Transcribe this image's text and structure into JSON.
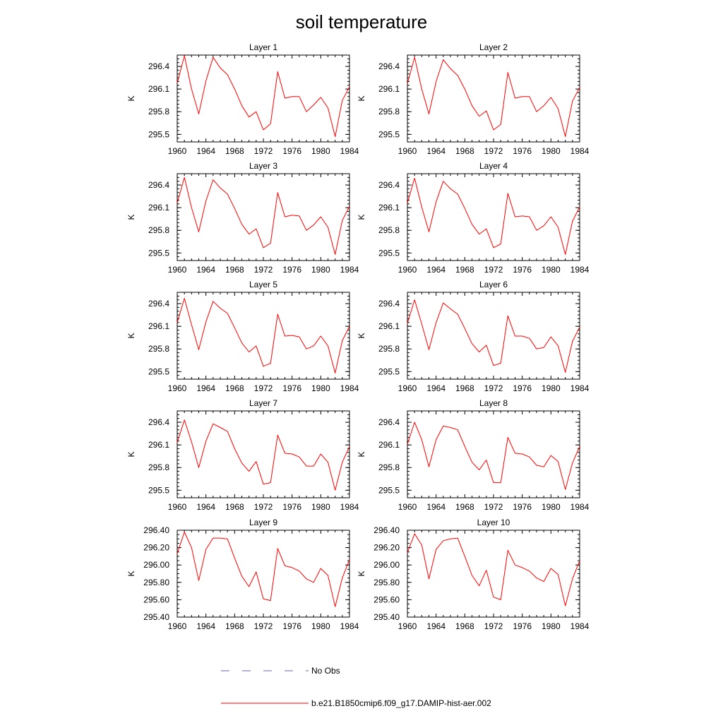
{
  "title": "soil temperature",
  "colors": {
    "model": "#ff0000",
    "obs": "#6666cc",
    "axis": "#000000"
  },
  "legend": [
    {
      "label": "No Obs",
      "style": "dashed",
      "color": "#6666cc"
    },
    {
      "label": "b.e21.B1850cmip6.f09_g17.DAMIP-hist-aer.002",
      "style": "solid",
      "color": "#ff0000"
    }
  ],
  "chart_data": [
    {
      "type": "line",
      "title": "Layer 1",
      "ylabel": "K",
      "xlim": [
        1960,
        1984
      ],
      "ylim": [
        295.4,
        296.55
      ],
      "xticks": [
        1960,
        1964,
        1968,
        1972,
        1976,
        1980,
        1984
      ],
      "yticks": [
        "296.4",
        "296.1",
        "295.8",
        "295.5"
      ],
      "ytick_values": [
        296.4,
        296.1,
        295.8,
        295.5
      ],
      "x": [
        1960,
        1961,
        1962,
        1963,
        1964,
        1965,
        1966,
        1967,
        1968,
        1969,
        1970,
        1971,
        1972,
        1973,
        1974,
        1975,
        1976,
        1977,
        1978,
        1979,
        1980,
        1981,
        1982,
        1983,
        1984
      ],
      "series": [
        {
          "name": "b.e21.B1850cmip6.f09_g17.DAMIP-hist-aer.002",
          "values": [
            296.18,
            296.54,
            296.1,
            295.77,
            296.21,
            296.52,
            296.38,
            296.29,
            296.1,
            295.88,
            295.73,
            295.8,
            295.56,
            295.64,
            296.33,
            295.98,
            296.0,
            296.0,
            295.8,
            295.89,
            295.99,
            295.85,
            295.47,
            295.95,
            296.13
          ]
        }
      ]
    },
    {
      "type": "line",
      "title": "Layer 2",
      "ylabel": "K",
      "xlim": [
        1960,
        1984
      ],
      "ylim": [
        295.4,
        296.55
      ],
      "xticks": [
        1960,
        1964,
        1968,
        1972,
        1976,
        1980,
        1984
      ],
      "yticks": [
        "296.4",
        "296.1",
        "295.8",
        "295.5"
      ],
      "ytick_values": [
        296.4,
        296.1,
        295.8,
        295.5
      ],
      "x": [
        1960,
        1961,
        1962,
        1963,
        1964,
        1965,
        1966,
        1967,
        1968,
        1969,
        1970,
        1971,
        1972,
        1973,
        1974,
        1975,
        1976,
        1977,
        1978,
        1979,
        1980,
        1981,
        1982,
        1983,
        1984
      ],
      "series": [
        {
          "name": "b.e21.B1850cmip6.f09_g17.DAMIP-hist-aer.002",
          "values": [
            296.17,
            296.52,
            296.1,
            295.77,
            296.2,
            296.49,
            296.37,
            296.28,
            296.1,
            295.88,
            295.74,
            295.81,
            295.56,
            295.63,
            296.32,
            295.98,
            296.0,
            296.0,
            295.8,
            295.88,
            295.99,
            295.84,
            295.47,
            295.94,
            296.12
          ]
        }
      ]
    },
    {
      "type": "line",
      "title": "Layer 3",
      "ylabel": "K",
      "xlim": [
        1960,
        1984
      ],
      "ylim": [
        295.4,
        296.55
      ],
      "xticks": [
        1960,
        1964,
        1968,
        1972,
        1976,
        1980,
        1984
      ],
      "yticks": [
        "296.4",
        "296.1",
        "295.8",
        "295.5"
      ],
      "ytick_values": [
        296.4,
        296.1,
        295.8,
        295.5
      ],
      "x": [
        1960,
        1961,
        1962,
        1963,
        1964,
        1965,
        1966,
        1967,
        1968,
        1969,
        1970,
        1971,
        1972,
        1973,
        1974,
        1975,
        1976,
        1977,
        1978,
        1979,
        1980,
        1981,
        1982,
        1983,
        1984
      ],
      "series": [
        {
          "name": "b.e21.B1850cmip6.f09_g17.DAMIP-hist-aer.002",
          "values": [
            296.16,
            296.5,
            296.1,
            295.78,
            296.19,
            296.47,
            296.36,
            296.28,
            296.09,
            295.88,
            295.75,
            295.82,
            295.57,
            295.63,
            296.3,
            295.98,
            296.0,
            295.99,
            295.8,
            295.87,
            295.98,
            295.84,
            295.48,
            295.93,
            296.12
          ]
        }
      ]
    },
    {
      "type": "line",
      "title": "Layer 4",
      "ylabel": "K",
      "xlim": [
        1960,
        1984
      ],
      "ylim": [
        295.4,
        296.55
      ],
      "xticks": [
        1960,
        1964,
        1968,
        1972,
        1976,
        1980,
        1984
      ],
      "yticks": [
        "296.4",
        "296.1",
        "295.8",
        "295.5"
      ],
      "ytick_values": [
        296.4,
        296.1,
        295.8,
        295.5
      ],
      "x": [
        1960,
        1961,
        1962,
        1963,
        1964,
        1965,
        1966,
        1967,
        1968,
        1969,
        1970,
        1971,
        1972,
        1973,
        1974,
        1975,
        1976,
        1977,
        1978,
        1979,
        1980,
        1981,
        1982,
        1983,
        1984
      ],
      "series": [
        {
          "name": "b.e21.B1850cmip6.f09_g17.DAMIP-hist-aer.002",
          "values": [
            296.16,
            296.49,
            296.11,
            295.78,
            296.18,
            296.45,
            296.35,
            296.28,
            296.09,
            295.88,
            295.75,
            295.82,
            295.57,
            295.62,
            296.29,
            295.98,
            295.99,
            295.98,
            295.8,
            295.86,
            295.98,
            295.84,
            295.48,
            295.92,
            296.11
          ]
        }
      ]
    },
    {
      "type": "line",
      "title": "Layer 5",
      "ylabel": "K",
      "xlim": [
        1960,
        1984
      ],
      "ylim": [
        295.4,
        296.55
      ],
      "xticks": [
        1960,
        1964,
        1968,
        1972,
        1976,
        1980,
        1984
      ],
      "yticks": [
        "296.4",
        "296.1",
        "295.8",
        "295.5"
      ],
      "ytick_values": [
        296.4,
        296.1,
        295.8,
        295.5
      ],
      "x": [
        1960,
        1961,
        1962,
        1963,
        1964,
        1965,
        1966,
        1967,
        1968,
        1969,
        1970,
        1971,
        1972,
        1973,
        1974,
        1975,
        1976,
        1977,
        1978,
        1979,
        1980,
        1981,
        1982,
        1983,
        1984
      ],
      "series": [
        {
          "name": "b.e21.B1850cmip6.f09_g17.DAMIP-hist-aer.002",
          "values": [
            296.15,
            296.47,
            296.12,
            295.79,
            296.16,
            296.43,
            296.34,
            296.27,
            296.08,
            295.88,
            295.76,
            295.84,
            295.57,
            295.61,
            296.26,
            295.97,
            295.98,
            295.96,
            295.8,
            295.84,
            295.97,
            295.84,
            295.48,
            295.91,
            296.1
          ]
        }
      ]
    },
    {
      "type": "line",
      "title": "Layer 6",
      "ylabel": "K",
      "xlim": [
        1960,
        1984
      ],
      "ylim": [
        295.4,
        296.55
      ],
      "xticks": [
        1960,
        1964,
        1968,
        1972,
        1976,
        1980,
        1984
      ],
      "yticks": [
        "296.4",
        "296.1",
        "295.8",
        "295.5"
      ],
      "ytick_values": [
        296.4,
        296.1,
        295.8,
        295.5
      ],
      "x": [
        1960,
        1961,
        1962,
        1963,
        1964,
        1965,
        1966,
        1967,
        1968,
        1969,
        1970,
        1971,
        1972,
        1973,
        1974,
        1975,
        1976,
        1977,
        1978,
        1979,
        1980,
        1981,
        1982,
        1983,
        1984
      ],
      "series": [
        {
          "name": "b.e21.B1850cmip6.f09_g17.DAMIP-hist-aer.002",
          "values": [
            296.14,
            296.45,
            296.13,
            295.79,
            296.15,
            296.41,
            296.33,
            296.26,
            296.07,
            295.87,
            295.76,
            295.85,
            295.58,
            295.61,
            296.24,
            295.97,
            295.97,
            295.94,
            295.8,
            295.82,
            295.96,
            295.84,
            295.49,
            295.9,
            296.09
          ]
        }
      ]
    },
    {
      "type": "line",
      "title": "Layer 7",
      "ylabel": "K",
      "xlim": [
        1960,
        1984
      ],
      "ylim": [
        295.4,
        296.55
      ],
      "xticks": [
        1960,
        1964,
        1968,
        1972,
        1976,
        1980,
        1984
      ],
      "yticks": [
        "296.4",
        "296.1",
        "295.8",
        "295.5"
      ],
      "ytick_values": [
        296.4,
        296.1,
        295.8,
        295.5
      ],
      "x": [
        1960,
        1961,
        1962,
        1963,
        1964,
        1965,
        1966,
        1967,
        1968,
        1969,
        1970,
        1971,
        1972,
        1973,
        1974,
        1975,
        1976,
        1977,
        1978,
        1979,
        1980,
        1981,
        1982,
        1983,
        1984
      ],
      "series": [
        {
          "name": "b.e21.B1850cmip6.f09_g17.DAMIP-hist-aer.002",
          "values": [
            296.13,
            296.43,
            296.14,
            295.8,
            296.15,
            296.38,
            296.33,
            296.28,
            296.05,
            295.86,
            295.75,
            295.88,
            295.58,
            295.6,
            296.23,
            295.99,
            295.98,
            295.94,
            295.82,
            295.82,
            295.98,
            295.87,
            295.5,
            295.87,
            296.08
          ]
        }
      ]
    },
    {
      "type": "line",
      "title": "Layer 8",
      "ylabel": "K",
      "xlim": [
        1960,
        1984
      ],
      "ylim": [
        295.4,
        296.55
      ],
      "xticks": [
        1960,
        1964,
        1968,
        1972,
        1976,
        1980,
        1984
      ],
      "yticks": [
        "296.4",
        "296.1",
        "295.8",
        "295.5"
      ],
      "ytick_values": [
        296.4,
        296.1,
        295.8,
        295.5
      ],
      "x": [
        1960,
        1961,
        1962,
        1963,
        1964,
        1965,
        1966,
        1967,
        1968,
        1969,
        1970,
        1971,
        1972,
        1973,
        1974,
        1975,
        1976,
        1977,
        1978,
        1979,
        1980,
        1981,
        1982,
        1983,
        1984
      ],
      "series": [
        {
          "name": "b.e21.B1850cmip6.f09_g17.DAMIP-hist-aer.002",
          "values": [
            296.11,
            296.4,
            296.17,
            295.81,
            296.17,
            296.35,
            296.33,
            296.3,
            296.08,
            295.87,
            295.77,
            295.9,
            295.6,
            295.6,
            296.2,
            295.99,
            295.98,
            295.94,
            295.83,
            295.81,
            295.96,
            295.88,
            295.51,
            295.86,
            296.08
          ]
        }
      ]
    },
    {
      "type": "line",
      "title": "Layer 9",
      "ylabel": "K",
      "xlim": [
        1960,
        1984
      ],
      "ylim": [
        295.4,
        296.4
      ],
      "xticks": [
        1960,
        1964,
        1968,
        1972,
        1976,
        1980,
        1984
      ],
      "yticks": [
        "296.40",
        "296.20",
        "296.00",
        "295.80",
        "295.60",
        "295.40"
      ],
      "ytick_values": [
        296.4,
        296.2,
        296.0,
        295.8,
        295.6,
        295.4
      ],
      "x": [
        1960,
        1961,
        1962,
        1963,
        1964,
        1965,
        1966,
        1967,
        1968,
        1969,
        1970,
        1971,
        1972,
        1973,
        1974,
        1975,
        1976,
        1977,
        1978,
        1979,
        1980,
        1981,
        1982,
        1983,
        1984
      ],
      "series": [
        {
          "name": "b.e21.B1850cmip6.f09_g17.DAMIP-hist-aer.002",
          "values": [
            296.13,
            296.38,
            296.2,
            295.82,
            296.18,
            296.31,
            296.31,
            296.3,
            296.08,
            295.87,
            295.75,
            295.92,
            295.61,
            295.59,
            296.19,
            295.99,
            295.97,
            295.93,
            295.84,
            295.8,
            295.96,
            295.88,
            295.52,
            295.85,
            296.06
          ]
        }
      ]
    },
    {
      "type": "line",
      "title": "Layer 10",
      "ylabel": "K",
      "xlim": [
        1960,
        1984
      ],
      "ylim": [
        295.4,
        296.4
      ],
      "xticks": [
        1960,
        1964,
        1968,
        1972,
        1976,
        1980,
        1984
      ],
      "yticks": [
        "296.40",
        "296.20",
        "296.00",
        "295.80",
        "295.60",
        "295.40"
      ],
      "ytick_values": [
        296.4,
        296.2,
        296.0,
        295.8,
        295.6,
        295.4
      ],
      "x": [
        1960,
        1961,
        1962,
        1963,
        1964,
        1965,
        1966,
        1967,
        1968,
        1969,
        1970,
        1971,
        1972,
        1973,
        1974,
        1975,
        1976,
        1977,
        1978,
        1979,
        1980,
        1981,
        1982,
        1983,
        1984
      ],
      "series": [
        {
          "name": "b.e21.B1850cmip6.f09_g17.DAMIP-hist-aer.002",
          "values": [
            296.14,
            296.36,
            296.23,
            295.84,
            296.18,
            296.28,
            296.3,
            296.31,
            296.1,
            295.88,
            295.76,
            295.94,
            295.63,
            295.6,
            296.17,
            296.0,
            295.97,
            295.93,
            295.85,
            295.81,
            295.96,
            295.89,
            295.53,
            295.84,
            296.05
          ]
        }
      ]
    }
  ]
}
